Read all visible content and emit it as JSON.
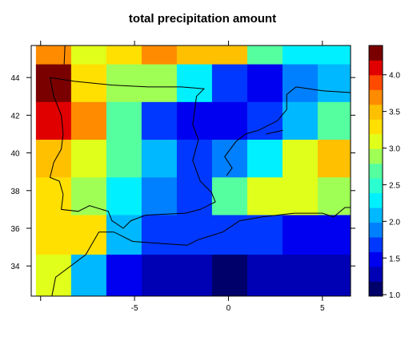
{
  "chart_data": {
    "type": "heatmap",
    "title": "total precipitation amount",
    "xlabel": "",
    "ylabel": "",
    "x_ticks": [
      "-5",
      "0",
      "5"
    ],
    "x_tick_values": [
      -5,
      0,
      5
    ],
    "y_ticks": [
      "34",
      "36",
      "38",
      "40",
      "42",
      "44"
    ],
    "y_tick_values": [
      34,
      36,
      38,
      40,
      42,
      44
    ],
    "xlim": [
      -10.5,
      6.5
    ],
    "ylim": [
      32.4,
      45.7
    ],
    "colorbar": {
      "ticks": [
        "1.0",
        "1.5",
        "2.0",
        "2.5",
        "3.0",
        "3.5",
        "4.0"
      ],
      "tick_values": [
        1.0,
        1.5,
        2.0,
        2.5,
        3.0,
        3.5,
        4.0
      ],
      "range": [
        0.98,
        4.4
      ],
      "levels": 17
    },
    "grid": {
      "x_edges": [
        -10.25,
        -8.375,
        -6.5,
        -4.625,
        -2.75,
        -0.875,
        1.0,
        2.875,
        4.75,
        6.5
      ],
      "y_edges": [
        45.7,
        44.7,
        42.7,
        40.7,
        38.7,
        36.7,
        34.6,
        32.4
      ],
      "values": [
        [
          3.7,
          3.0,
          3.2,
          3.7,
          3.4,
          3.4,
          2.6,
          2.3,
          2.3
        ],
        [
          4.3,
          3.2,
          2.8,
          2.8,
          2.3,
          1.6,
          1.4,
          1.8,
          2.1
        ],
        [
          4.1,
          3.7,
          2.6,
          1.6,
          1.4,
          1.4,
          1.6,
          2.1,
          2.6
        ],
        [
          3.4,
          3.0,
          2.6,
          2.1,
          1.6,
          1.8,
          2.3,
          3.0,
          3.4
        ],
        [
          3.2,
          2.8,
          2.3,
          1.8,
          1.6,
          2.6,
          3.0,
          3.0,
          2.8
        ],
        [
          3.2,
          3.2,
          2.1,
          1.6,
          1.6,
          1.6,
          1.6,
          1.4,
          1.4
        ],
        [
          3.0,
          2.1,
          1.4,
          1.2,
          1.2,
          1.05,
          1.2,
          1.2,
          1.2
        ]
      ]
    },
    "coastline": [
      [
        [
          -8.7,
          45.7
        ],
        [
          -8.75,
          44.7
        ]
      ],
      [
        [
          -9.4,
          32.4
        ],
        [
          -9.2,
          33.4
        ],
        [
          -7.6,
          34.6
        ],
        [
          -6.9,
          35.8
        ],
        [
          -6.1,
          35.8
        ],
        [
          -5.1,
          35.3
        ],
        [
          -3.7,
          35.2
        ],
        [
          -2.2,
          35.1
        ],
        [
          -1.6,
          35.4
        ],
        [
          -0.3,
          35.8
        ],
        [
          0.6,
          36.4
        ],
        [
          1.8,
          36.6
        ],
        [
          3.5,
          36.8
        ],
        [
          5.0,
          36.8
        ],
        [
          5.6,
          36.6
        ],
        [
          6.2,
          37.1
        ],
        [
          6.5,
          37.1
        ]
      ],
      [
        [
          -9.5,
          44.0
        ],
        [
          -8.2,
          43.8
        ],
        [
          -6.2,
          43.6
        ],
        [
          -4.3,
          43.5
        ],
        [
          -2.5,
          43.5
        ],
        [
          -1.3,
          43.4
        ],
        [
          -1.7,
          43.0
        ],
        [
          -1.9,
          41.5
        ],
        [
          -1.6,
          40.7
        ],
        [
          -1.9,
          39.6
        ],
        [
          -1.5,
          38.5
        ],
        [
          -0.9,
          37.9
        ],
        [
          -0.7,
          37.4
        ],
        [
          -1.5,
          37.0
        ],
        [
          -2.3,
          36.8
        ],
        [
          -4.4,
          36.7
        ],
        [
          -5.2,
          36.4
        ],
        [
          -5.6,
          36.0
        ],
        [
          -6.2,
          36.4
        ],
        [
          -6.4,
          36.9
        ],
        [
          -7.4,
          37.2
        ],
        [
          -8.0,
          36.9
        ],
        [
          -8.9,
          37.0
        ],
        [
          -8.8,
          37.8
        ],
        [
          -9.0,
          38.5
        ],
        [
          -9.5,
          38.7
        ],
        [
          -9.3,
          39.5
        ],
        [
          -8.9,
          40.2
        ],
        [
          -8.8,
          41.0
        ],
        [
          -8.9,
          42.0
        ],
        [
          -9.3,
          43.0
        ],
        [
          -9.5,
          44.0
        ]
      ],
      [
        [
          6.5,
          43.2
        ],
        [
          5.0,
          43.3
        ],
        [
          3.6,
          43.5
        ],
        [
          3.1,
          43.1
        ],
        [
          3.1,
          42.3
        ],
        [
          2.6,
          41.7
        ],
        [
          1.6,
          41.2
        ],
        [
          0.9,
          41.0
        ],
        [
          0.4,
          40.6
        ],
        [
          -0.2,
          39.8
        ],
        [
          0.2,
          39.2
        ],
        [
          -0.1,
          38.8
        ]
      ],
      [
        [
          2.9,
          41.2
        ],
        [
          2.0,
          41.0
        ]
      ]
    ]
  }
}
